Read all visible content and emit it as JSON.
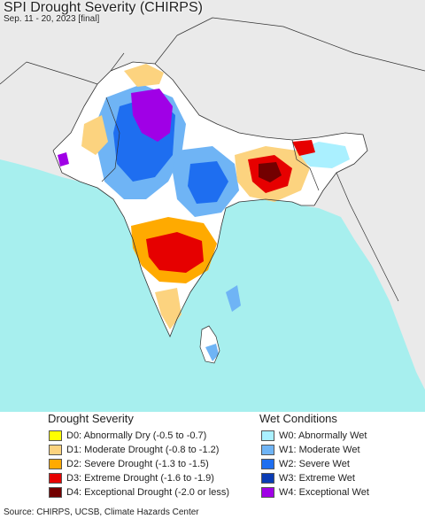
{
  "header": {
    "title": "SPI Drought Severity (CHIRPS)",
    "subtitle": "Sep. 11 - 20, 2023 [final]"
  },
  "colors": {
    "ocean": "#a7efee",
    "land": "#eaeaea",
    "land_neutral": "#ffffff",
    "border": "#333333"
  },
  "legend": {
    "drought_title": "Drought Severity",
    "wet_title": "Wet Conditions",
    "drought_items": [
      {
        "code": "D0",
        "label": "D0: Abnormally Dry (-0.5 to -0.7)",
        "color": "#ffff00"
      },
      {
        "code": "D1",
        "label": "D1: Moderate Drought (-0.8 to -1.2)",
        "color": "#fcd37f"
      },
      {
        "code": "D2",
        "label": "D2: Severe Drought (-1.3 to -1.5)",
        "color": "#ffaa00"
      },
      {
        "code": "D3",
        "label": "D3: Extreme Drought (-1.6 to -1.9)",
        "color": "#e60000"
      },
      {
        "code": "D4",
        "label": "D4: Exceptional Drought (-2.0 or less)",
        "color": "#730000"
      }
    ],
    "wet_items": [
      {
        "code": "W0",
        "label": "W0: Abnormally Wet",
        "color": "#aaf0ff"
      },
      {
        "code": "W1",
        "label": "W1: Moderate Wet",
        "color": "#6fb4f5"
      },
      {
        "code": "W2",
        "label": "W2: Severe Wet",
        "color": "#1e6ef0"
      },
      {
        "code": "W3",
        "label": "W3: Extreme Wet",
        "color": "#0a3cb4"
      },
      {
        "code": "W4",
        "label": "W4: Exceptional Wet",
        "color": "#a000e6"
      }
    ]
  },
  "footer": {
    "source": "Source: CHIRPS, UCSB, Climate Hazards Center"
  }
}
